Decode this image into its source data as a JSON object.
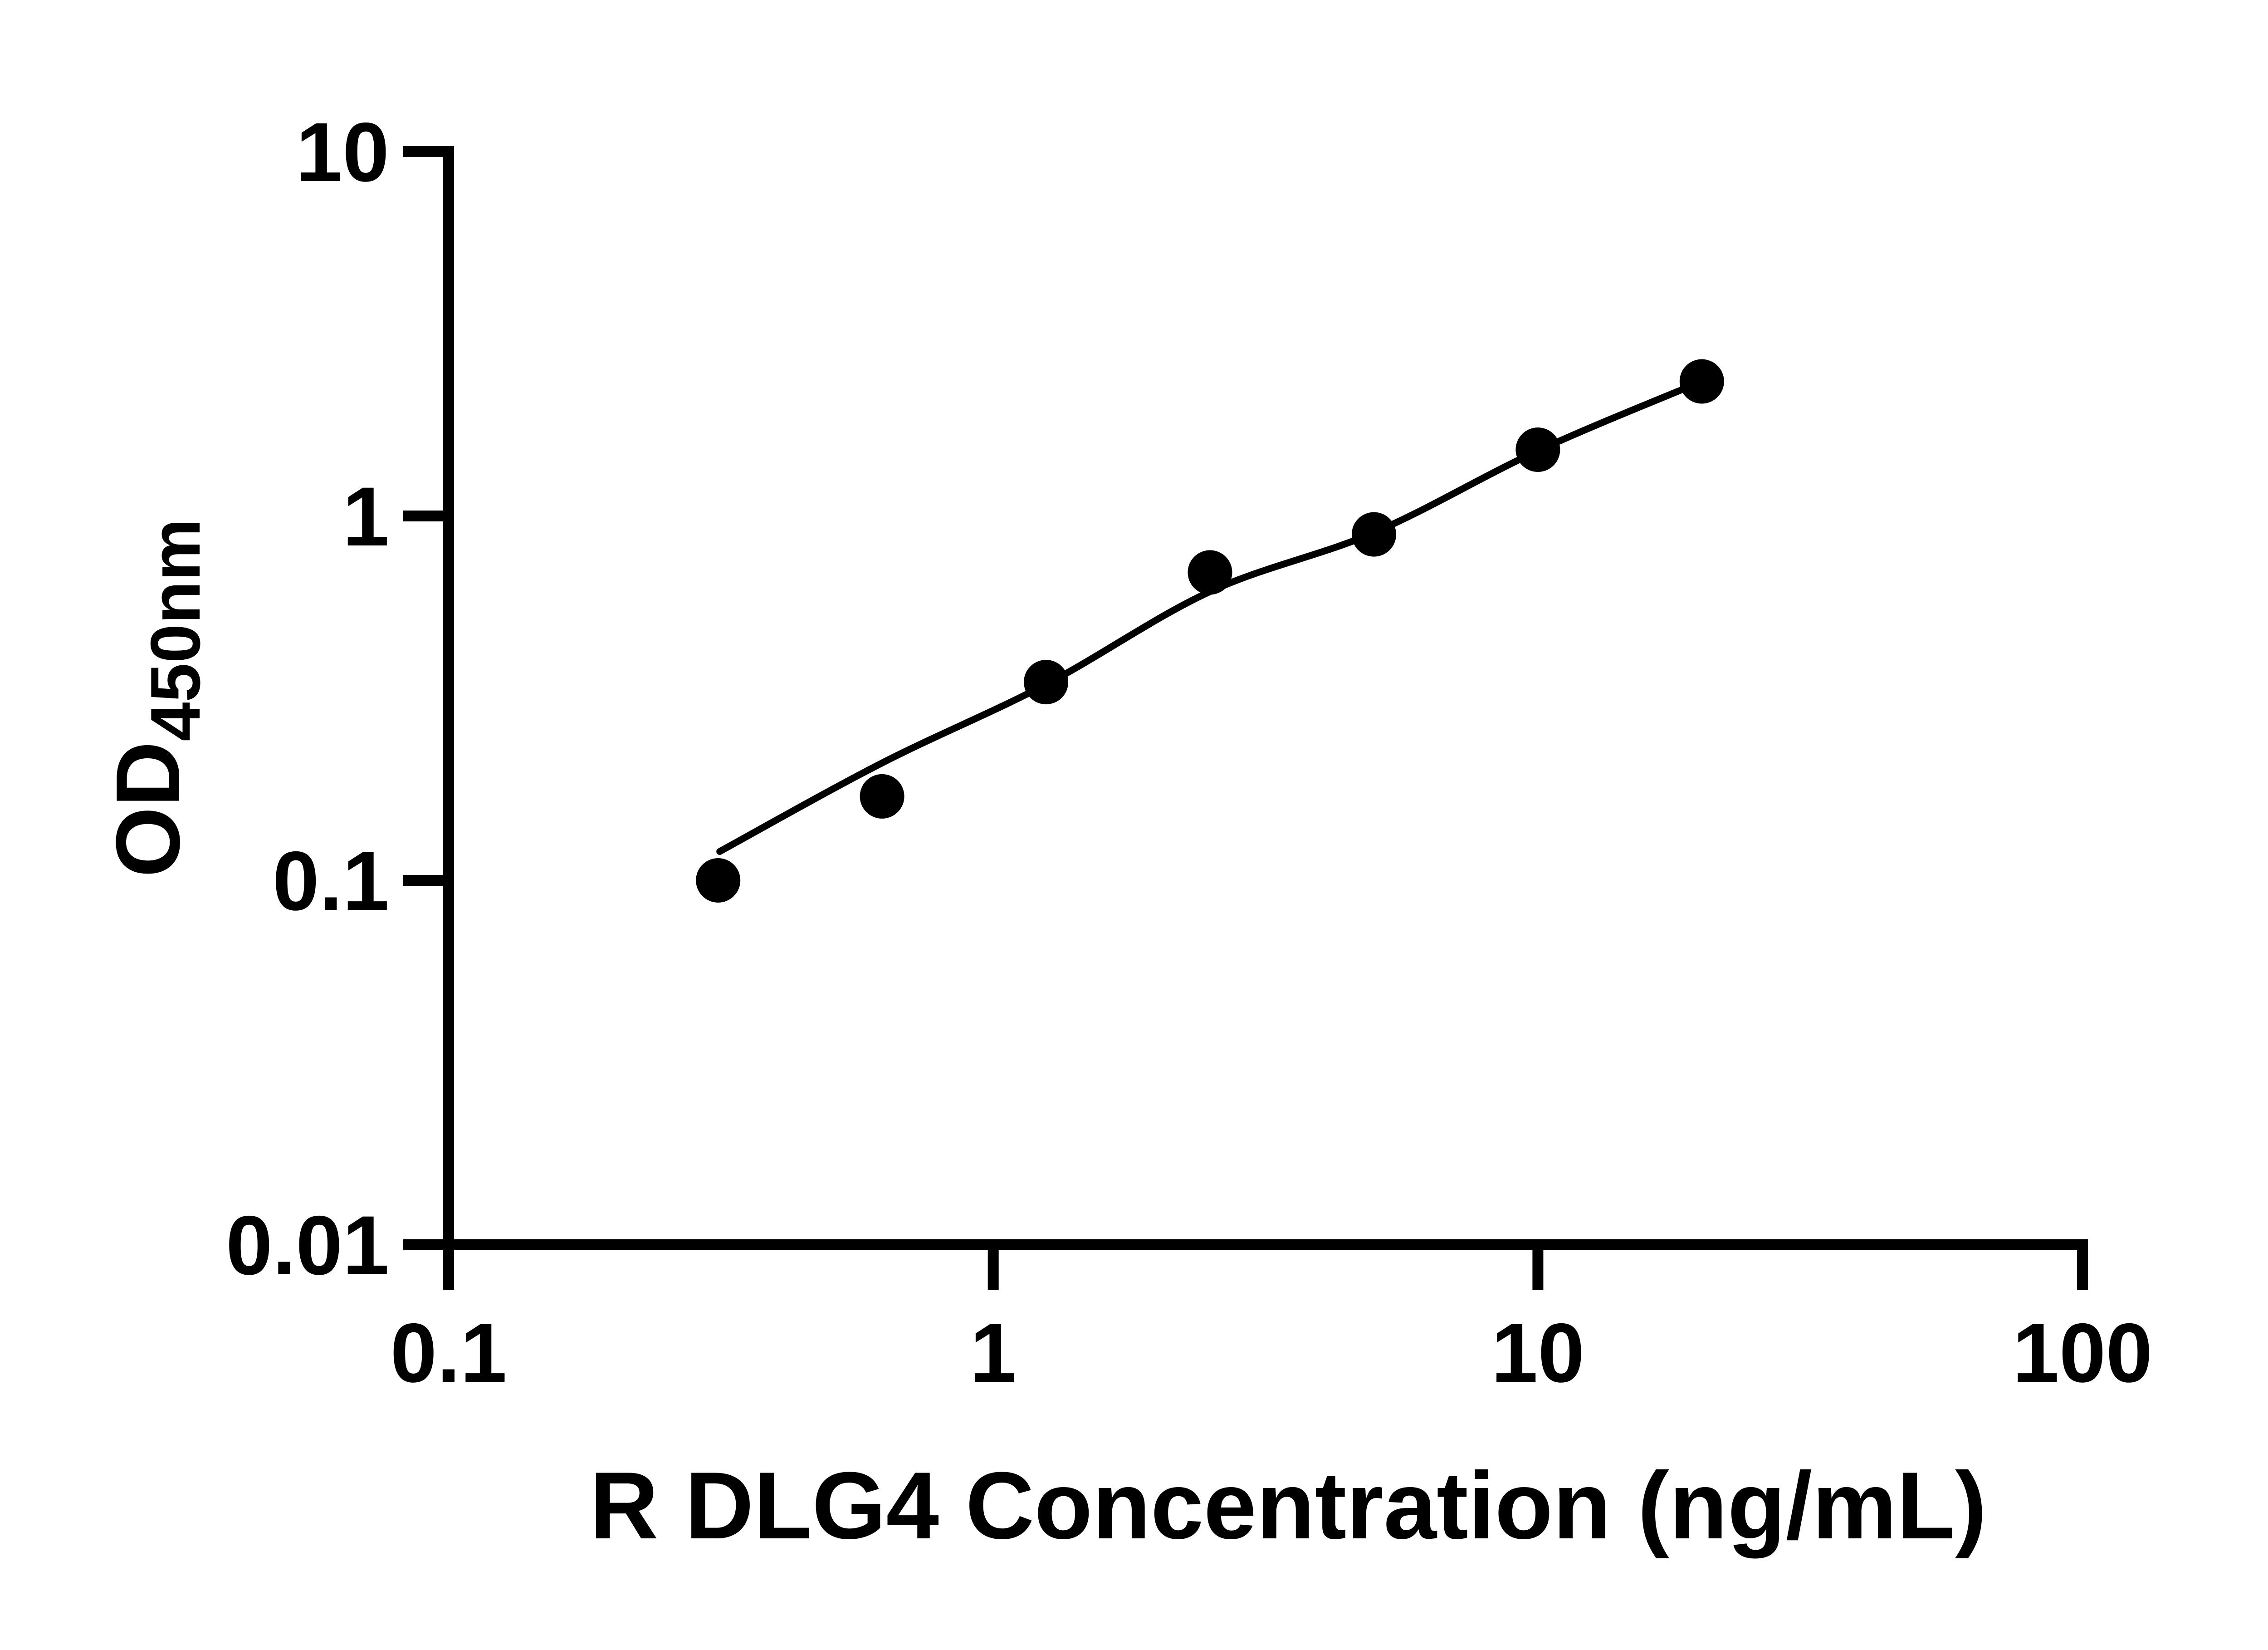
{
  "figure": {
    "background_color": "#ffffff",
    "ink_color": "#000000",
    "description": "ELISA standard curve, filled black circles with fitted line on log-log axes"
  },
  "chart_data": {
    "type": "scatter",
    "series_name": "R DLG4 standard curve",
    "marker": "filled-circle",
    "log_x": true,
    "log_y": true,
    "grid": false,
    "legend": "none",
    "title": "",
    "xlabel": "R DLG4 Concentration (ng/mL)",
    "ylabel_main": "OD",
    "ylabel_sub": "450nm",
    "xlim": [
      0.1,
      100
    ],
    "ylim": [
      0.01,
      10
    ],
    "x": [
      0.3125,
      0.625,
      1.25,
      2.5,
      5,
      10,
      20
    ],
    "y": [
      0.1,
      0.17,
      0.35,
      0.7,
      0.89,
      1.52,
      2.34
    ],
    "fit_curve": {
      "x": [
        0.3146,
        0.625,
        1.25,
        2.5,
        5,
        10,
        20
      ],
      "y": [
        0.12,
        0.21,
        0.345,
        0.62,
        0.9,
        1.51,
        2.34
      ]
    },
    "x_ticks": [
      {
        "value": 0.1,
        "label": "0.1"
      },
      {
        "value": 1,
        "label": "1"
      },
      {
        "value": 10,
        "label": "10"
      },
      {
        "value": 100,
        "label": "100"
      }
    ],
    "y_ticks": [
      {
        "value": 10,
        "label": "10"
      },
      {
        "value": 1,
        "label": "1"
      },
      {
        "value": 0.1,
        "label": "0.1"
      },
      {
        "value": 0.01,
        "label": "0.01"
      }
    ]
  }
}
